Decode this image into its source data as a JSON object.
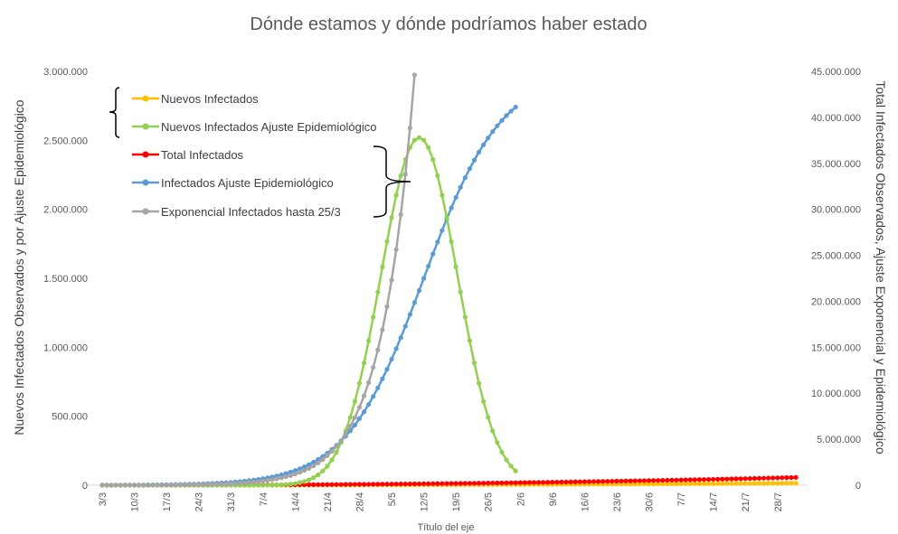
{
  "chart_data": {
    "type": "line",
    "title": "Dónde estamos y dónde podríamos haber estado",
    "xlabel": "Título del eje",
    "ylabel_left": "Nuevos Infectados Observados y por Ajuste Epidemiológico",
    "ylabel_right": "Total Infectados Observados, Ajuste Exponencial y Epidemiológico",
    "ylim_left": [
      0,
      3000000
    ],
    "ylim_right": [
      0,
      45000000
    ],
    "yticks_left": [
      "0",
      "500.000",
      "1.000.000",
      "1.500.000",
      "2.000.000",
      "2.500.000",
      "3.000.000"
    ],
    "yticks_right": [
      "0",
      "5.000.000",
      "10.000.000",
      "15.000.000",
      "20.000.000",
      "25.000.000",
      "30.000.000",
      "35.000.000",
      "40.000.000",
      "45.000.000"
    ],
    "x_tick_labels": [
      "3/3",
      "10/3",
      "17/3",
      "24/3",
      "31/3",
      "7/4",
      "14/4",
      "21/4",
      "28/4",
      "5/5",
      "12/5",
      "19/5",
      "26/5",
      "2/6",
      "9/6",
      "16/6",
      "23/6",
      "30/6",
      "7/7",
      "14/7",
      "21/7",
      "28/7"
    ],
    "x_start_date": "3/3",
    "x_days_total": 154,
    "legend": {
      "group_left": [
        "Nuevos Infectados",
        "Nuevos Infectados Ajuste Epidemiológico"
      ],
      "group_right": [
        "Total Infectados",
        "Infectados Ajuste Epidemiológico",
        "Exponencial Infectados hasta 25/3"
      ]
    },
    "series": [
      {
        "name": "Nuevos Infectados",
        "axis": "left",
        "color": "#FFC000",
        "start_day": 0,
        "end_day": 151,
        "model": "observed-growth",
        "end_value": 15000
      },
      {
        "name": "Nuevos Infectados Ajuste Epidemiológico",
        "axis": "left",
        "color": "#92D050",
        "start_day": 0,
        "end_day": 90,
        "model": "gaussian",
        "peak_day": 69,
        "peak_value": 2520000,
        "sigma": 8.3
      },
      {
        "name": "Total Infectados",
        "axis": "right",
        "color": "#FF0000",
        "start_day": 0,
        "end_day": 151,
        "model": "observed-growth",
        "end_value": 850000
      },
      {
        "name": "Infectados Ajuste Epidemiológico",
        "axis": "right",
        "color": "#5B9BD5",
        "start_day": 0,
        "end_day": 90,
        "model": "logistic",
        "L": 45000000,
        "mid_day": 70,
        "k": 0.118
      },
      {
        "name": "Exponencial Infectados hasta 25/3",
        "axis": "right",
        "color": "#A5A5A5",
        "start_day": 0,
        "end_day": 68,
        "model": "exponential",
        "base_value": 3600,
        "rate": 0.1386
      }
    ]
  }
}
